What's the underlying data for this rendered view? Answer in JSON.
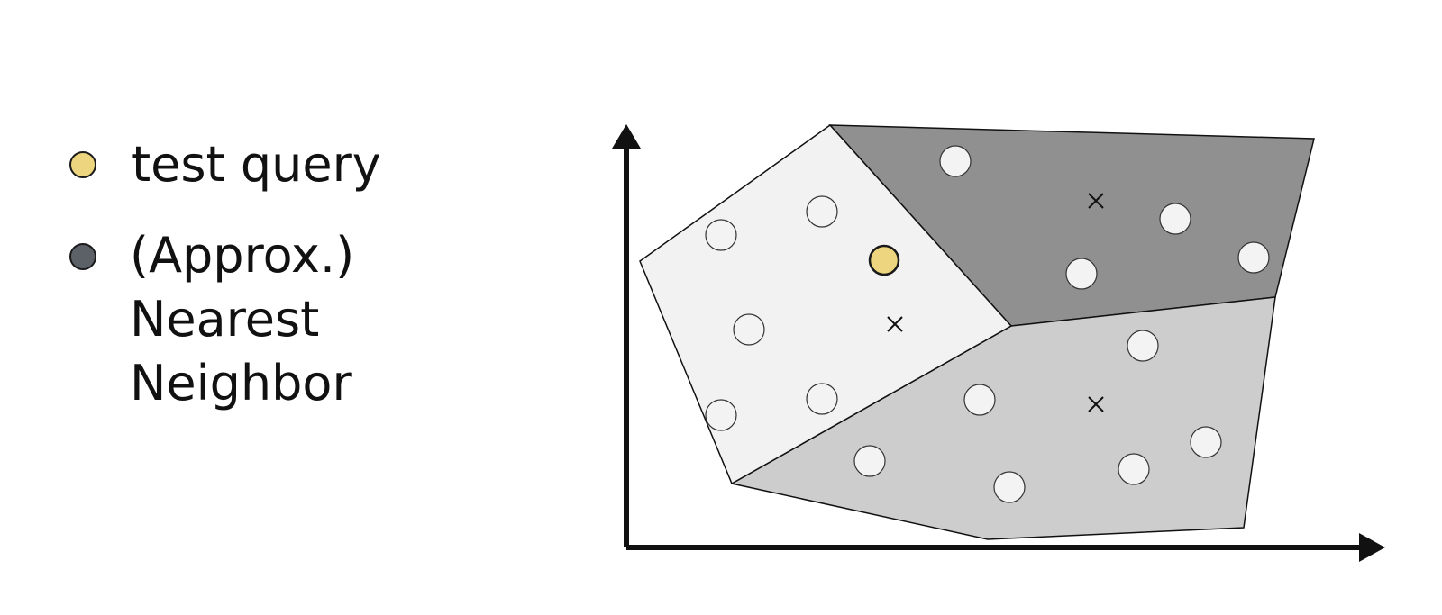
{
  "legend": {
    "query_label": "test query",
    "neighbor_label_lines": [
      "(Approx.)",
      "Nearest",
      "Neighbor"
    ]
  },
  "colors": {
    "query_fill": "#ecd57e",
    "neighbor_fill": "#5c6167",
    "cell_light": "#f2f2f2",
    "cell_mid": "#cdcdcd",
    "cell_dark": "#909090",
    "point_fill": "#f3f3f3",
    "stroke": "#111111"
  },
  "icons": {
    "centroid": "x-mark-icon",
    "point": "circle-icon",
    "axis_arrow": "arrow-head-icon"
  }
}
